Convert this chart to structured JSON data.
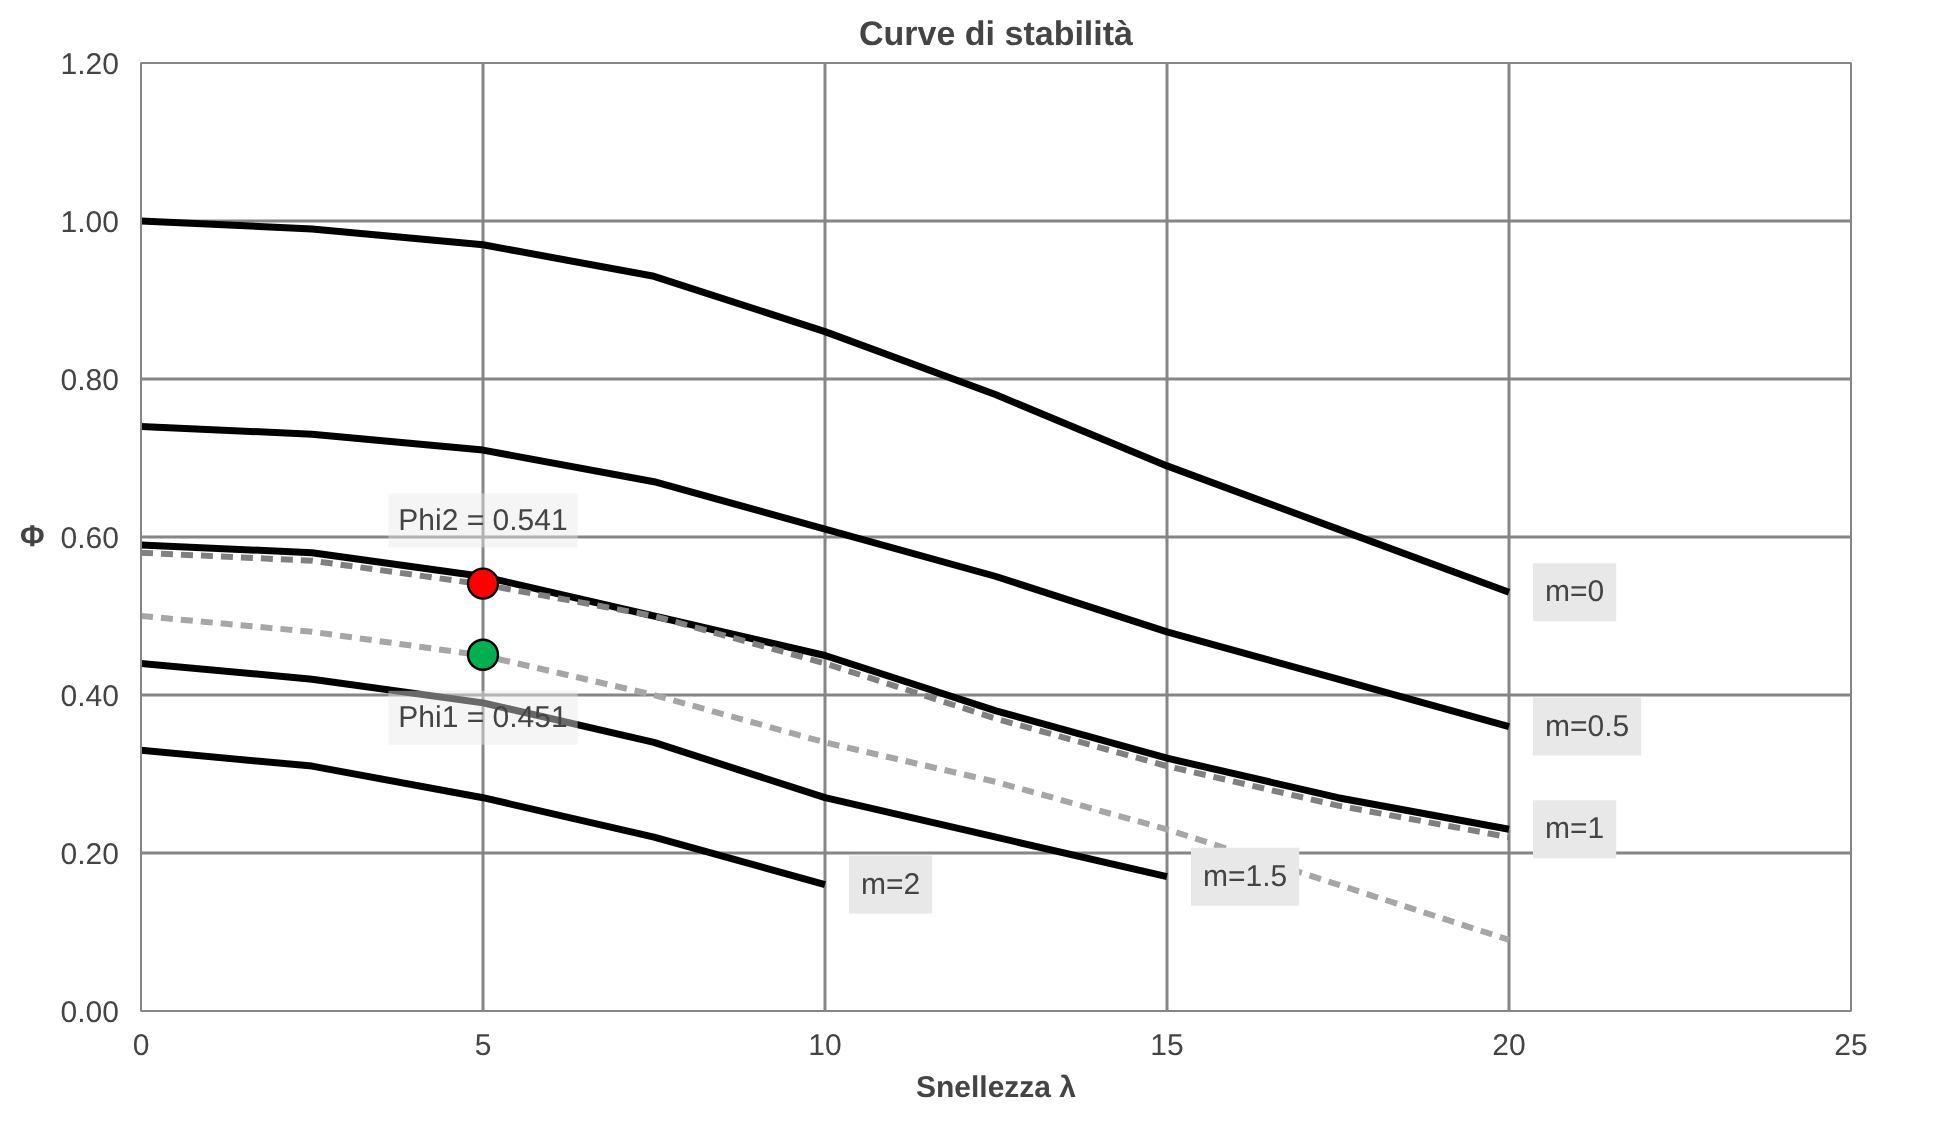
{
  "chart_data": {
    "type": "line",
    "title": "Curve di stabilità",
    "xlabel": "Snellezza λ",
    "ylabel": "Φ",
    "xlim": [
      0,
      25
    ],
    "xticks": [
      0,
      5,
      10,
      15,
      20,
      25
    ],
    "ylim": [
      0,
      1.2
    ],
    "yticks": [
      {
        "value": 0,
        "label": "0.00"
      },
      {
        "value": 0.2,
        "label": "0.20"
      },
      {
        "value": 0.4,
        "label": "0.40"
      },
      {
        "value": 0.6,
        "label": "0.60"
      },
      {
        "value": 0.8,
        "label": "0.80"
      },
      {
        "value": 1.0,
        "label": "1.00"
      },
      {
        "value": 1.2,
        "label": "1.20"
      }
    ],
    "grid": true,
    "marker": "none",
    "line_style": "solid",
    "series": [
      {
        "name": "m=0",
        "color": "#000000",
        "x": [
          0,
          2.5,
          5,
          7.5,
          10,
          12.5,
          15,
          17.5,
          20
        ],
        "values": [
          1.0,
          0.99,
          0.97,
          0.93,
          0.86,
          0.78,
          0.69,
          0.61,
          0.53
        ]
      },
      {
        "name": "m=0.5",
        "color": "#000000",
        "x": [
          0,
          2.5,
          5,
          7.5,
          10,
          12.5,
          15,
          17.5,
          20
        ],
        "values": [
          0.74,
          0.73,
          0.71,
          0.67,
          0.61,
          0.55,
          0.48,
          0.42,
          0.36
        ]
      },
      {
        "name": "m=1",
        "color": "#000000",
        "x": [
          0,
          2.5,
          5,
          7.5,
          10,
          12.5,
          15,
          17.5,
          20
        ],
        "values": [
          0.59,
          0.58,
          0.55,
          0.5,
          0.45,
          0.38,
          0.32,
          0.27,
          0.23
        ]
      },
      {
        "name": "m=1.5",
        "color": "#000000",
        "x": [
          0,
          2.5,
          5,
          7.5,
          10,
          12.5,
          15
        ],
        "values": [
          0.44,
          0.42,
          0.39,
          0.34,
          0.27,
          0.22,
          0.17
        ]
      },
      {
        "name": "m=2",
        "color": "#000000",
        "x": [
          0,
          2.5,
          5,
          7.5,
          10
        ],
        "values": [
          0.33,
          0.31,
          0.27,
          0.22,
          0.16
        ]
      },
      {
        "color": "#808080",
        "line_style": "dashed",
        "x": [
          0,
          2.5,
          5,
          7.5,
          10,
          12.5,
          15,
          17.5,
          20
        ],
        "values": [
          0.58,
          0.57,
          0.54,
          0.5,
          0.44,
          0.37,
          0.31,
          0.26,
          0.22
        ]
      },
      {
        "color": "#a6a6a6",
        "line_style": "dashed",
        "x": [
          0,
          2.5,
          5,
          7.5,
          10,
          12.5,
          15,
          17.5,
          20
        ],
        "values": [
          0.5,
          0.48,
          0.45,
          0.4,
          0.34,
          0.29,
          0.23,
          0.16,
          0.09
        ]
      },
      {
        "type": "scatter",
        "marker": "circle",
        "color": "#ff0000",
        "x": [
          5
        ],
        "values": [
          0.541
        ]
      },
      {
        "type": "scatter",
        "marker": "circle",
        "color": "#00b050",
        "x": [
          5
        ],
        "values": [
          0.451
        ]
      }
    ],
    "annotations": [
      {
        "text": "Phi2 = 0.541",
        "x": 5,
        "y": 0.541
      },
      {
        "text": "Phi1 = 0.451",
        "x": 5,
        "y": 0.451
      }
    ]
  }
}
